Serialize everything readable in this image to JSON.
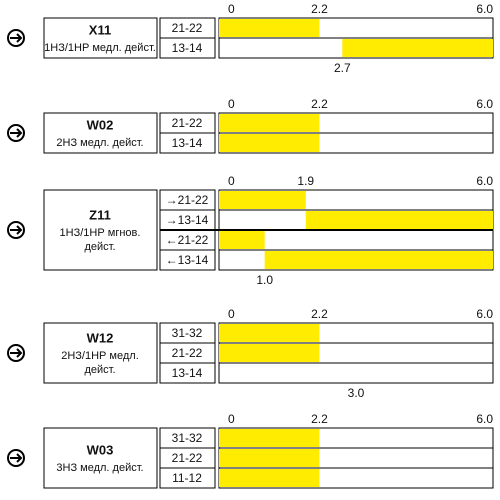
{
  "scale": {
    "min": 0,
    "max": 6
  },
  "blocks": [
    {
      "id": "X11",
      "desc": [
        "1НЗ/1НР медл. дейст."
      ],
      "ticks": [
        0,
        2.2,
        {
          "value": 6,
          "label": "6.0"
        }
      ],
      "rows": [
        {
          "label": "21-22",
          "fill": [
            0,
            2.2
          ]
        },
        {
          "label": "13-14",
          "fill": [
            2.7,
            6
          ]
        }
      ],
      "bottom_ticks": [
        2.7
      ]
    },
    {
      "id": "W02",
      "desc": [
        "2НЗ медл. дейст."
      ],
      "ticks": [
        0,
        2.2,
        {
          "value": 6,
          "label": "6.0"
        }
      ],
      "rows": [
        {
          "label": "21-22",
          "fill": [
            0,
            2.2
          ]
        },
        {
          "label": "13-14",
          "fill": [
            0,
            2.2
          ]
        }
      ],
      "bottom_ticks": []
    },
    {
      "id": "Z11",
      "desc": [
        "1НЗ/1НР мгнов.",
        "дейст."
      ],
      "ticks": [
        0,
        1.9,
        {
          "value": 6,
          "label": "6.0"
        }
      ],
      "rows": [
        {
          "label": "→21-22",
          "fill": [
            0,
            1.9
          ]
        },
        {
          "label": "→13-14",
          "fill": [
            1.9,
            6
          ]
        },
        {
          "label": "←21-22",
          "fill": [
            0,
            1
          ]
        },
        {
          "label": "←13-14",
          "fill": [
            1,
            6
          ]
        }
      ],
      "bottom_ticks": [
        {
          "value": 1,
          "label": "1.0"
        }
      ]
    },
    {
      "id": "W12",
      "desc": [
        "2НЗ/1НР медл.",
        "дейст."
      ],
      "ticks": [
        0,
        2.2,
        {
          "value": 6,
          "label": "6.0"
        }
      ],
      "rows": [
        {
          "label": "31-32",
          "fill": [
            0,
            2.2
          ]
        },
        {
          "label": "21-22",
          "fill": [
            0,
            2.2
          ]
        },
        {
          "label": "13-14",
          "fill": null
        }
      ],
      "bottom_ticks": [
        {
          "value": 3,
          "label": "3.0"
        }
      ]
    },
    {
      "id": "W03",
      "desc": [
        "3НЗ медл. дейст."
      ],
      "ticks": [
        0,
        2.2,
        {
          "value": 6,
          "label": "6.0"
        }
      ],
      "rows": [
        {
          "label": "31-32",
          "fill": [
            0,
            2.2
          ]
        },
        {
          "label": "21-22",
          "fill": [
            0,
            2.2
          ]
        },
        {
          "label": "11-12",
          "fill": [
            0,
            2.2
          ]
        }
      ],
      "bottom_ticks": []
    }
  ]
}
